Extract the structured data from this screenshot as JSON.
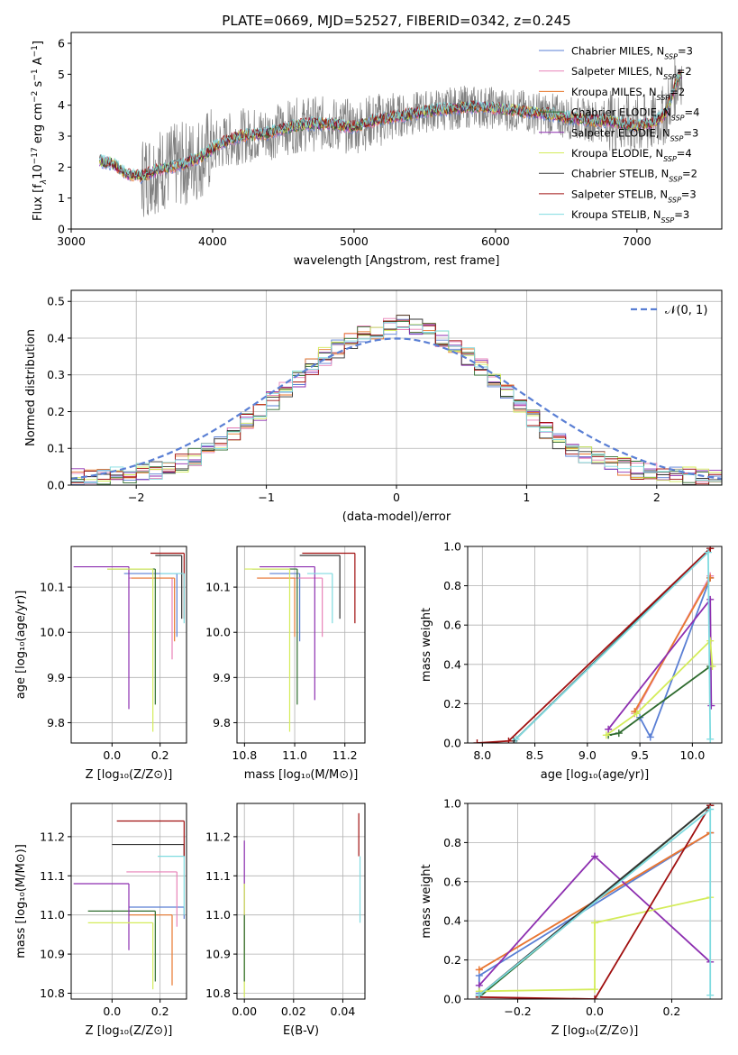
{
  "figure": {
    "title": "PLATE=0669, MJD=52527, FIBERID=0342, z=0.245"
  },
  "chart_data": [
    {
      "id": "spectrum",
      "type": "line",
      "xlabel": "wavelength [Angstrom, rest frame]",
      "ylabel": "Flux [f$_\\lambda$10$^{-17}$ erg cm$^{-2}$ s$^{-1}$ A$^{-1}$]",
      "ylabel_parts": {
        "a": "Flux [f",
        "b": "λ",
        "c": "10",
        "d": "−17",
        "e": " erg cm",
        "f": "−2",
        "g": " s",
        "h": "−1",
        "i": " A",
        "j": "−1",
        "k": "]"
      },
      "xlim": [
        3000,
        7600
      ],
      "ylim": [
        0,
        6.35
      ],
      "xticks": [
        "3000",
        "4000",
        "5000",
        "6000",
        "7000"
      ],
      "yticks": [
        "0",
        "1",
        "2",
        "3",
        "4",
        "5",
        "6"
      ],
      "grid": false,
      "legend_position": "upper-right",
      "legend": [
        {
          "text": "Chabrier MILES, N",
          "sub": "SSP",
          "suffix": "=3",
          "color": "#5a7fd4"
        },
        {
          "text": "Salpeter MILES, N",
          "sub": "SSP",
          "suffix": "=2",
          "color": "#e882b8"
        },
        {
          "text": "Kroupa MILES, N",
          "sub": "SSP",
          "suffix": "=2",
          "color": "#e8792f"
        },
        {
          "text": "Chabrier ELODIE, N",
          "sub": "SSP",
          "suffix": "=4",
          "color": "#2e6b2e"
        },
        {
          "text": "Salpeter ELODIE, N",
          "sub": "SSP",
          "suffix": "=3",
          "color": "#8d2fb0"
        },
        {
          "text": "Kroupa ELODIE, N",
          "sub": "SSP",
          "suffix": "=4",
          "color": "#d4ec5a"
        },
        {
          "text": "Chabrier STELIB, N",
          "sub": "SSP",
          "suffix": "=2",
          "color": "#333333"
        },
        {
          "text": "Salpeter STELIB, N",
          "sub": "SSP",
          "suffix": "=3",
          "color": "#a01010"
        },
        {
          "text": "Kroupa STELIB, N",
          "sub": "SSP",
          "suffix": "=3",
          "color": "#7fdbe0"
        }
      ],
      "data_color": "#808080",
      "model_continuum": {
        "x": [
          3200,
          3300,
          3400,
          3500,
          3600,
          3700,
          3800,
          3900,
          4000,
          4100,
          4200,
          4300,
          4400,
          4500,
          4600,
          4700,
          4800,
          4900,
          5000,
          5100,
          5200,
          5300,
          5400,
          5500,
          5600,
          5700,
          5800,
          5900,
          6000,
          6100,
          6200,
          6300,
          6400,
          6500,
          6600,
          6700,
          6800,
          6900,
          7000,
          7100,
          7200,
          7300
        ],
        "y": [
          2.2,
          2.1,
          1.75,
          1.7,
          1.9,
          2.0,
          2.1,
          2.3,
          2.6,
          2.85,
          3.0,
          3.05,
          3.1,
          3.25,
          3.35,
          3.4,
          3.4,
          3.35,
          3.3,
          3.45,
          3.55,
          3.65,
          3.7,
          3.8,
          3.85,
          3.9,
          3.95,
          3.95,
          3.9,
          3.85,
          3.8,
          3.75,
          3.7,
          3.6,
          3.55,
          3.5,
          3.5,
          3.4,
          3.35,
          3.4,
          3.7,
          5.0
        ]
      }
    },
    {
      "id": "residuals",
      "type": "step",
      "xlabel": "(data-model)/error",
      "ylabel": "Normed distribution",
      "xlim": [
        -2.5,
        2.5
      ],
      "ylim": [
        0,
        0.53
      ],
      "xticks": [
        "−2",
        "−1",
        "0",
        "1",
        "2"
      ],
      "yticks": [
        "0.0",
        "0.1",
        "0.2",
        "0.3",
        "0.4",
        "0.5"
      ],
      "grid": true,
      "legend_position": "upper-right",
      "legend": [
        {
          "text": "𝒩(0, 1)",
          "color": "#5a7fd4"
        }
      ],
      "histogram": {
        "bin_width": 0.1,
        "x_start": -2.5,
        "density": [
          0.02,
          0.02,
          0.025,
          0.03,
          0.03,
          0.035,
          0.04,
          0.05,
          0.06,
          0.075,
          0.09,
          0.11,
          0.14,
          0.17,
          0.2,
          0.23,
          0.26,
          0.29,
          0.32,
          0.35,
          0.37,
          0.39,
          0.41,
          0.42,
          0.43,
          0.44,
          0.43,
          0.42,
          0.4,
          0.38,
          0.35,
          0.32,
          0.29,
          0.25,
          0.22,
          0.18,
          0.15,
          0.12,
          0.1,
          0.08,
          0.07,
          0.06,
          0.05,
          0.04,
          0.035,
          0.03,
          0.03,
          0.025,
          0.025,
          0.02
        ]
      }
    },
    {
      "id": "age_vs_Z",
      "type": "scatter",
      "xlabel": "Z [log₁₀(Z/Z⊙)]",
      "ylabel": "age  [log₁₀(age/yr)]",
      "xlim": [
        -0.17,
        0.31
      ],
      "ylim": [
        9.755,
        10.19
      ],
      "xticks": [
        "0.0",
        "0.2"
      ],
      "yticks": [
        "9.8",
        "9.9",
        "10.0",
        "10.1"
      ],
      "grid": true,
      "points": [
        {
          "c": "#5a7fd4",
          "x": 0.27,
          "y": 10.13,
          "xl": 0.05,
          "yl": 9.99
        },
        {
          "c": "#e882b8",
          "x": 0.25,
          "y": 10.12,
          "xl": 0.07,
          "yl": 9.94
        },
        {
          "c": "#e8792f",
          "x": 0.26,
          "y": 10.12,
          "xl": 0.08,
          "yl": 9.98
        },
        {
          "c": "#2e6b2e",
          "x": 0.18,
          "y": 10.14,
          "xl": -0.02,
          "yl": 9.84
        },
        {
          "c": "#8d2fb0",
          "x": 0.07,
          "y": 10.145,
          "xl": -0.16,
          "yl": 9.83
        },
        {
          "c": "#d4ec5a",
          "x": 0.17,
          "y": 10.14,
          "xl": -0.02,
          "yl": 9.78
        },
        {
          "c": "#333333",
          "x": 0.29,
          "y": 10.17,
          "xl": 0.18,
          "yl": 10.03
        },
        {
          "c": "#a01010",
          "x": 0.3,
          "y": 10.175,
          "xl": 0.16,
          "yl": 10.03
        },
        {
          "c": "#7fdbe0",
          "x": 0.3,
          "y": 10.13,
          "xl": 0.2,
          "yl": 10.02
        }
      ]
    },
    {
      "id": "age_vs_mass",
      "type": "scatter",
      "xlabel": "mass [log₁₀(M/M⊙)]",
      "ylabel": "",
      "xlim": [
        10.77,
        11.28
      ],
      "ylim": [
        9.755,
        10.19
      ],
      "xticks": [
        "10.8",
        "11.0",
        "11.2"
      ],
      "yticks": [
        "9.8",
        "9.9",
        "10.0",
        "10.1"
      ],
      "grid": true,
      "points": [
        {
          "c": "#5a7fd4",
          "x": 11.02,
          "y": 10.13,
          "xl": 10.9,
          "yl": 9.98
        },
        {
          "c": "#e882b8",
          "x": 11.11,
          "y": 10.12,
          "xl": 10.85,
          "yl": 9.99
        },
        {
          "c": "#e8792f",
          "x": 11.0,
          "y": 10.12,
          "xl": 10.85,
          "yl": 9.99
        },
        {
          "c": "#2e6b2e",
          "x": 11.01,
          "y": 10.14,
          "xl": 10.83,
          "yl": 9.84
        },
        {
          "c": "#8d2fb0",
          "x": 11.08,
          "y": 10.145,
          "xl": 10.86,
          "yl": 9.85
        },
        {
          "c": "#d4ec5a",
          "x": 10.98,
          "y": 10.14,
          "xl": 10.8,
          "yl": 9.78
        },
        {
          "c": "#333333",
          "x": 11.18,
          "y": 10.17,
          "xl": 11.02,
          "yl": 10.03
        },
        {
          "c": "#a01010",
          "x": 11.24,
          "y": 10.175,
          "xl": 11.03,
          "yl": 10.02
        },
        {
          "c": "#7fdbe0",
          "x": 11.15,
          "y": 10.13,
          "xl": 11.05,
          "yl": 10.02
        }
      ]
    },
    {
      "id": "weight_vs_age",
      "type": "line",
      "xlabel": "age  [log₁₀(age/yr)]",
      "ylabel": "mass weight",
      "xlim": [
        7.86,
        10.28
      ],
      "ylim": [
        0,
        1.0
      ],
      "xticks": [
        "8.0",
        "8.5",
        "9.0",
        "9.5",
        "10.0"
      ],
      "yticks": [
        "0.0",
        "0.2",
        "0.4",
        "0.6",
        "0.8",
        "1.0"
      ],
      "grid": true,
      "series": [
        {
          "c": "#5a7fd4",
          "x": [
            9.5,
            9.6,
            10.17
          ],
          "y": [
            0.13,
            0.03,
            0.84
          ]
        },
        {
          "c": "#e882b8",
          "x": [
            9.45,
            10.17
          ],
          "y": [
            0.15,
            0.85
          ]
        },
        {
          "c": "#e8792f",
          "x": [
            9.45,
            10.17
          ],
          "y": [
            0.16,
            0.84
          ]
        },
        {
          "c": "#2e6b2e",
          "x": [
            9.2,
            9.3,
            10.17
          ],
          "y": [
            0.04,
            0.05,
            0.39
          ]
        },
        {
          "c": "#8d2fb0",
          "x": [
            9.2,
            10.17,
            10.18
          ],
          "y": [
            0.07,
            0.73,
            0.19
          ]
        },
        {
          "c": "#d4ec5a",
          "x": [
            9.18,
            9.47,
            10.17,
            10.19
          ],
          "y": [
            0.04,
            0.15,
            0.52,
            0.39
          ]
        },
        {
          "c": "#333333",
          "x": [
            8.3,
            10.17
          ],
          "y": [
            0.01,
            0.99
          ]
        },
        {
          "c": "#a01010",
          "x": [
            7.95,
            8.25,
            10.17
          ],
          "y": [
            0.0,
            0.01,
            0.99
          ]
        },
        {
          "c": "#7fdbe0",
          "x": [
            8.32,
            10.15,
            10.17
          ],
          "y": [
            0.02,
            0.97,
            0.02
          ]
        }
      ]
    },
    {
      "id": "mass_vs_Z",
      "type": "scatter",
      "xlabel": "Z [log₁₀(Z/Z⊙)]",
      "ylabel": "mass [log₁₀(M/M⊙)]",
      "xlim": [
        -0.17,
        0.31
      ],
      "ylim": [
        10.785,
        11.285
      ],
      "xticks": [
        "0.0",
        "0.2"
      ],
      "yticks": [
        "10.8",
        "10.9",
        "11.0",
        "11.1",
        "11.2"
      ],
      "grid": true,
      "points": [
        {
          "c": "#5a7fd4",
          "x": 0.3,
          "y": 11.02,
          "xl": 0.07,
          "yl": 10.99
        },
        {
          "c": "#e882b8",
          "x": 0.27,
          "y": 11.11,
          "xl": 0.06,
          "yl": 10.97
        },
        {
          "c": "#e8792f",
          "x": 0.25,
          "y": 11.0,
          "xl": 0.07,
          "yl": 10.82
        },
        {
          "c": "#2e6b2e",
          "x": 0.18,
          "y": 11.01,
          "xl": -0.1,
          "yl": 10.83
        },
        {
          "c": "#8d2fb0",
          "x": 0.07,
          "y": 11.08,
          "xl": -0.16,
          "yl": 10.91
        },
        {
          "c": "#d4ec5a",
          "x": 0.17,
          "y": 10.98,
          "xl": -0.1,
          "yl": 10.81
        },
        {
          "c": "#333333",
          "x": 0.3,
          "y": 11.18,
          "xl": 0.0,
          "yl": 11.15
        },
        {
          "c": "#a01010",
          "x": 0.3,
          "y": 11.24,
          "xl": 0.02,
          "yl": 11.15
        },
        {
          "c": "#7fdbe0",
          "x": 0.3,
          "y": 11.15,
          "xl": 0.19,
          "yl": 11.0
        }
      ]
    },
    {
      "id": "mass_vs_ebv",
      "type": "scatter",
      "xlabel": "E(B-V)",
      "ylabel": "",
      "xlim": [
        -0.003,
        0.049
      ],
      "ylim": [
        10.785,
        11.285
      ],
      "xticks": [
        "0.00",
        "0.02",
        "0.04"
      ],
      "yticks": [
        "10.8",
        "10.9",
        "11.0",
        "11.1",
        "11.2"
      ],
      "grid": true,
      "points": [
        {
          "c": "#8d2fb0",
          "x": 0.0,
          "y": 11.19,
          "yl": 10.91
        },
        {
          "c": "#d4ec5a",
          "x": 0.0,
          "y": 11.08,
          "yl": 10.79
        },
        {
          "c": "#2e6b2e",
          "x": 0.0,
          "y": 11.0,
          "yl": 10.83
        },
        {
          "c": "#a01010",
          "x": 0.0465,
          "y": 11.26,
          "yl": 11.15
        },
        {
          "c": "#7fdbe0",
          "x": 0.047,
          "y": 11.15,
          "yl": 10.98
        }
      ]
    },
    {
      "id": "weight_vs_Z",
      "type": "line",
      "xlabel": "Z [log₁₀(Z/Z⊙)]",
      "ylabel": "mass weight",
      "xlim": [
        -0.33,
        0.33
      ],
      "ylim": [
        0,
        1.0
      ],
      "xticks": [
        "−0.2",
        "0.0",
        "0.2"
      ],
      "yticks": [
        "0.0",
        "0.2",
        "0.4",
        "0.6",
        "0.8",
        "1.0"
      ],
      "grid": true,
      "series": [
        {
          "c": "#5a7fd4",
          "x": [
            -0.3,
            -0.3,
            0.3
          ],
          "y": [
            0.03,
            0.12,
            0.85
          ]
        },
        {
          "c": "#e882b8",
          "x": [
            -0.3,
            0.3
          ],
          "y": [
            0.15,
            0.85
          ]
        },
        {
          "c": "#e8792f",
          "x": [
            -0.3,
            0.3
          ],
          "y": [
            0.15,
            0.85
          ]
        },
        {
          "c": "#2e6b2e",
          "x": [
            -0.3,
            0.3
          ],
          "y": [
            0.01,
            0.99
          ]
        },
        {
          "c": "#8d2fb0",
          "x": [
            -0.3,
            0.0,
            0.3
          ],
          "y": [
            0.07,
            0.73,
            0.19
          ]
        },
        {
          "c": "#d4ec5a",
          "x": [
            -0.3,
            0.0,
            0.0,
            0.3
          ],
          "y": [
            0.04,
            0.05,
            0.39,
            0.52
          ]
        },
        {
          "c": "#333333",
          "x": [
            -0.3,
            0.3
          ],
          "y": [
            0.02,
            0.99
          ]
        },
        {
          "c": "#a01010",
          "x": [
            -0.3,
            0.0,
            0.3
          ],
          "y": [
            0.01,
            0.0,
            0.99
          ]
        },
        {
          "c": "#7fdbe0",
          "x": [
            -0.3,
            0.3,
            0.3
          ],
          "y": [
            0.02,
            0.97,
            0.02
          ]
        }
      ]
    }
  ]
}
